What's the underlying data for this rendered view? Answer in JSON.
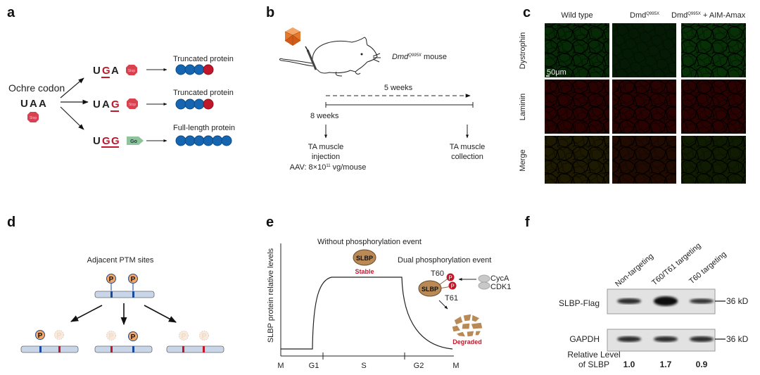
{
  "panels": {
    "a": {
      "label": "a",
      "source_title": "Ochre codon",
      "source_codon": [
        "U",
        "A",
        "A"
      ],
      "stop_text": "Stop",
      "go_text": "Go",
      "rows": [
        {
          "codon": [
            "U",
            "G",
            "A"
          ],
          "edited_index": 1,
          "signal": "Stop",
          "result": "Truncated protein",
          "blue_beads": 3,
          "red_beads": 1
        },
        {
          "codon": [
            "U",
            "A",
            "G"
          ],
          "edited_index": 2,
          "signal": "Stop",
          "result": "Truncated protein",
          "blue_beads": 3,
          "red_beads": 1
        },
        {
          "codon": [
            "U",
            "G",
            "G"
          ],
          "edited_index": 1,
          "signal": "Go",
          "result": "Full-length protein",
          "blue_beads": 6,
          "red_beads": 0
        }
      ]
    },
    "b": {
      "label": "b",
      "mouse_label_main": "Dmd",
      "mouse_label_sup": "Q995X",
      "mouse_label_suffix": " mouse",
      "duration": "5 weeks",
      "start_age": "8 weeks",
      "start_event_line1": "TA muscle",
      "start_event_line2": "injection",
      "dose_prefix": "AAV: 8×10",
      "dose_exp": "11",
      "dose_suffix": " vg/mouse",
      "end_event_line1": "TA muscle",
      "end_event_line2": "collection"
    },
    "c": {
      "label": "c",
      "columns": [
        {
          "main": "Wild type",
          "sup": "",
          "suffix": ""
        },
        {
          "main": "Dmd",
          "sup": "Q995X",
          "suffix": ""
        },
        {
          "main": "Dmd",
          "sup": "Q995X",
          "suffix": " + AIM-Amax"
        }
      ],
      "rows": [
        "Dystrophin",
        "Laminin",
        "Merge"
      ],
      "scale_bar": "50μm"
    },
    "d": {
      "label": "d",
      "title": "Adjacent PTM sites",
      "p_text": "P"
    },
    "e": {
      "label": "e",
      "ylabel": "SLBP protein relative levels",
      "xticks": [
        "M",
        "G1",
        "S",
        "G2",
        "M"
      ],
      "stable_title": "Without phosphorylation event",
      "protein": "SLBP",
      "stable_label": "Stable",
      "dual_title": "Dual phosphorylation event",
      "site1": "T60",
      "site2": "T61",
      "kinase1": "CycA",
      "kinase2": "CDK1",
      "degraded_label": "Degraded",
      "p_text": "P"
    },
    "f": {
      "label": "f",
      "lanes": [
        "Non-targeting",
        "T60/T61 targeting",
        "T60 targeting"
      ],
      "blots": [
        {
          "name": "SLBP-Flag",
          "marker": "36 kD",
          "band_intensity": [
            1.0,
            1.7,
            0.9
          ]
        },
        {
          "name": "GAPDH",
          "marker": "36 kD",
          "band_intensity": [
            1.0,
            1.0,
            1.0
          ]
        }
      ],
      "rel_label_line1": "Relative Level",
      "rel_label_line2": "of SLBP",
      "rel_values": [
        "1.0",
        "1.7",
        "0.9"
      ]
    }
  },
  "colors": {
    "red": "#c0182b",
    "blue_bead": "#1565b0",
    "go_green": "#8dc49a",
    "slbp_brown": "#b98a55",
    "phospho_orange": "#f2a766",
    "bar_fill": "#c9d6ea"
  }
}
